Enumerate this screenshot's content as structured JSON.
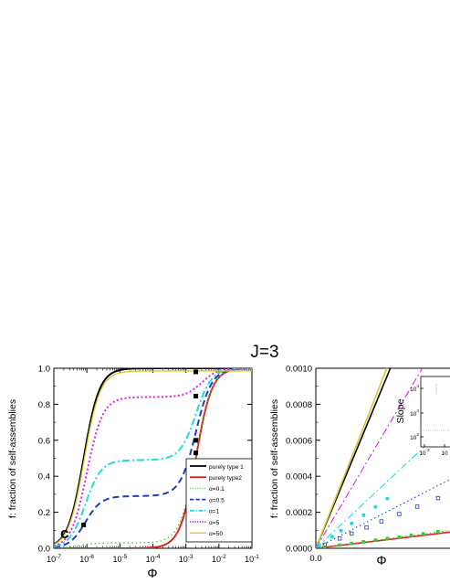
{
  "title": "J=3",
  "chart_data": [
    {
      "type": "line",
      "panel_label": "c",
      "xlabel": "Φ",
      "ylabel": "f: fraction of self-assemblies",
      "xscale": "log",
      "xlim": [
        1e-07,
        0.1
      ],
      "ylim": [
        0.0,
        1.0
      ],
      "x_ticks": [
        {
          "base": "10",
          "exp": "-7"
        },
        {
          "base": "10",
          "exp": "-6"
        },
        {
          "base": "10",
          "exp": "-5"
        },
        {
          "base": "10",
          "exp": "-4"
        },
        {
          "base": "10",
          "exp": "-3"
        },
        {
          "base": "10",
          "exp": "-2"
        },
        {
          "base": "10",
          "exp": "-1"
        }
      ],
      "y_ticks": [
        "0.0",
        "0.2",
        "0.4",
        "0.6",
        "0.8",
        "1.0"
      ],
      "legend_position": "bottom-right",
      "series": [
        {
          "name": "purely type 1",
          "color": "#000000",
          "style": "solid",
          "width": 2,
          "model": "sigmoid",
          "params": {
            "mid": 8e-07,
            "width": 0.24,
            "top": 1.0
          }
        },
        {
          "name": "purely type2",
          "color": "#e2231a",
          "style": "solid",
          "width": 2,
          "model": "sigmoid",
          "params": {
            "mid": 0.002,
            "width": 0.24,
            "top": 1.0
          }
        },
        {
          "name": "α=0.1",
          "color": "#33cc33",
          "style": "dotted",
          "width": 1.3,
          "model": "two_step",
          "params": {
            "p": 0.03,
            "mid1": 6e-07,
            "mid2": 0.002,
            "width": 0.24
          }
        },
        {
          "name": "α=0.5",
          "color": "#1f3fbf",
          "style": "dashed",
          "width": 2,
          "model": "two_step",
          "params": {
            "p": 0.29,
            "mid1": 9e-07,
            "mid2": 0.002,
            "width": 0.24
          }
        },
        {
          "name": "α=1",
          "color": "#22d8e0",
          "style": "dashdot",
          "width": 2,
          "model": "two_step",
          "params": {
            "p": 0.49,
            "mid1": 9e-07,
            "mid2": 0.002,
            "width": 0.24
          }
        },
        {
          "name": "α=5",
          "color": "#e020e0",
          "style": "dotted-heavy",
          "width": 2,
          "model": "two_step",
          "params": {
            "p": 0.84,
            "mid1": 1e-06,
            "mid2": 0.003,
            "width": 0.24
          }
        },
        {
          "name": "α=50",
          "color": "#d8c830",
          "style": "solid",
          "width": 1.3,
          "model": "sigmoid",
          "params": {
            "mid": 8.3e-07,
            "width": 0.24,
            "top": 0.985
          }
        }
      ],
      "markers": [
        {
          "x": 8e-07,
          "y": 0.13
        },
        {
          "x": 0.002,
          "y": 0.98
        },
        {
          "x": 0.002,
          "y": 0.845
        },
        {
          "x": 0.002,
          "y": 0.6
        },
        {
          "x": 0.002,
          "y": 0.53
        },
        {
          "x": 0.002,
          "y": 0.45
        }
      ]
    },
    {
      "type": "line",
      "xlabel": "Φ",
      "ylabel": "f: fraction of self-assemblies",
      "xlim": [
        0.0,
        0.0045
      ],
      "ylim": [
        0.0,
        0.001
      ],
      "x_ticks": [
        "0.0"
      ],
      "y_ticks": [
        "0.0000",
        "0.0002",
        "0.0004",
        "0.0006",
        "0.0008",
        "0.0010"
      ],
      "series": [
        {
          "color": "#000000",
          "style": "solid",
          "slope": 0.4
        },
        {
          "color": "#d8c830",
          "style": "solid",
          "slope": 0.42
        },
        {
          "color": "#e020e0",
          "style": "dashdot",
          "slope": 0.28
        },
        {
          "color": "#22d8e0",
          "style": "dashdot",
          "slope": 0.155
        },
        {
          "color": "#1f3fbf",
          "style": "dotted",
          "slope": 0.085
        },
        {
          "color": "#e2231a",
          "style": "solid",
          "slope": 0.02
        },
        {
          "color": "#33cc33",
          "style": "dotted",
          "slope": 0.022
        }
      ],
      "marker_series": [
        {
          "color": "#22d8e0",
          "shape": "square",
          "slope": 0.115,
          "x": [
            0.00012,
            0.00055,
            0.00085,
            0.0012,
            0.0016,
            0.002,
            0.0024
          ]
        },
        {
          "color": "#1f3fbf",
          "shape": "open-square",
          "slope": 0.068,
          "x": [
            0.0003,
            0.0008,
            0.0012,
            0.0017,
            0.0022,
            0.0028,
            0.0034,
            0.0041
          ]
        },
        {
          "color": "#33cc33",
          "shape": "square",
          "slope": 0.0225,
          "x": [
            0.0003,
            0.0008,
            0.0012,
            0.0016,
            0.002,
            0.0024,
            0.0028,
            0.0032,
            0.0036,
            0.0041
          ]
        }
      ],
      "inset": {
        "ylabel": "Slope",
        "y_ticks": [
          {
            "base": "10",
            "exp": "4"
          },
          {
            "base": "10",
            "exp": "3"
          },
          {
            "base": "10",
            "exp": "2"
          }
        ],
        "x_ticks": [
          {
            "base": "10",
            "exp": "-2"
          },
          {
            "base": "10",
            "exp": ""
          }
        ]
      }
    }
  ]
}
